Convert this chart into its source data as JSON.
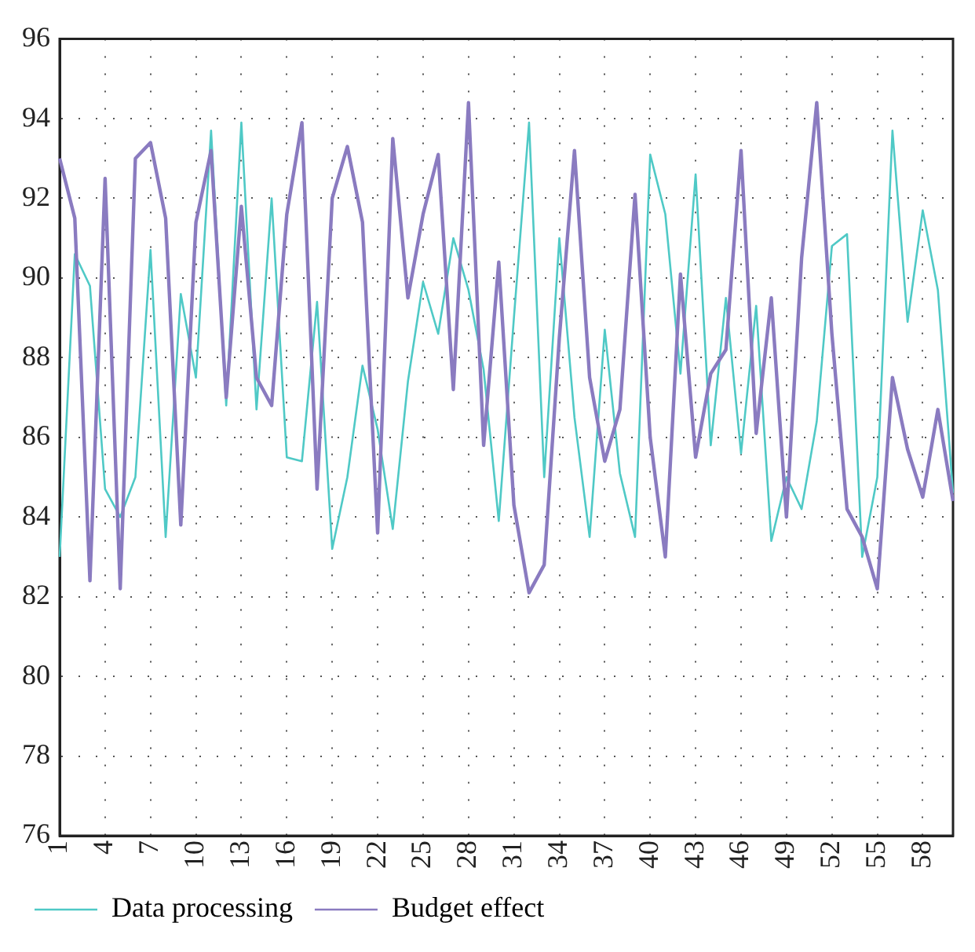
{
  "chart_data": {
    "type": "line",
    "categories": [
      "1",
      null,
      null,
      "4",
      null,
      null,
      "7",
      null,
      null,
      "10",
      null,
      null,
      "13",
      null,
      null,
      "16",
      null,
      null,
      "19",
      null,
      null,
      "22",
      null,
      null,
      "25",
      null,
      null,
      "28",
      null,
      null,
      "31",
      null,
      null,
      "34",
      null,
      null,
      "37",
      null,
      null,
      "40",
      null,
      null,
      "43",
      null,
      null,
      "46",
      null,
      null,
      "49",
      null,
      null,
      "52",
      null,
      null,
      "55",
      null,
      null,
      "58",
      null,
      null
    ],
    "series": [
      {
        "name": "Data processing",
        "color": "#4fc9c6",
        "values": [
          83.0,
          90.6,
          89.8,
          84.7,
          84.0,
          85.0,
          90.7,
          83.5,
          89.6,
          87.5,
          93.7,
          86.8,
          93.9,
          86.7,
          92.0,
          85.5,
          85.4,
          89.4,
          83.2,
          85.0,
          87.8,
          86.2,
          83.7,
          87.4,
          89.9,
          88.6,
          91.0,
          89.7,
          87.7,
          83.9,
          89.0,
          93.9,
          85.0,
          91.0,
          86.5,
          83.5,
          88.7,
          85.1,
          83.5,
          93.1,
          91.6,
          87.6,
          92.6,
          85.8,
          89.5,
          85.6,
          89.3,
          83.4,
          85.0,
          84.2,
          86.4,
          90.8,
          91.1,
          83.0,
          85.0,
          93.7,
          88.9,
          91.7,
          89.7,
          84.6
        ]
      },
      {
        "name": "Budget effect",
        "color": "#8a7bc0",
        "values": [
          93.0,
          91.5,
          82.4,
          92.5,
          82.2,
          93.0,
          93.4,
          91.5,
          83.8,
          91.4,
          93.2,
          87.0,
          91.8,
          87.5,
          86.8,
          91.6,
          93.9,
          84.7,
          92.0,
          93.3,
          91.4,
          83.6,
          93.5,
          89.5,
          91.6,
          93.1,
          87.2,
          94.4,
          85.8,
          90.4,
          84.3,
          82.1,
          82.8,
          88.5,
          93.2,
          87.5,
          85.4,
          86.7,
          92.1,
          86.0,
          83.0,
          90.1,
          85.5,
          87.6,
          88.2,
          93.2,
          86.1,
          89.5,
          84.0,
          90.5,
          94.4,
          88.6,
          84.2,
          83.5,
          82.2,
          87.5,
          85.7,
          84.5,
          86.7,
          84.4
        ]
      }
    ],
    "ylim": [
      76,
      96
    ],
    "yticks": [
      76,
      78,
      80,
      82,
      84,
      86,
      88,
      90,
      92,
      94,
      96
    ],
    "grid": true,
    "legend": "bottom left",
    "marker": "none",
    "line_style": "solid"
  }
}
